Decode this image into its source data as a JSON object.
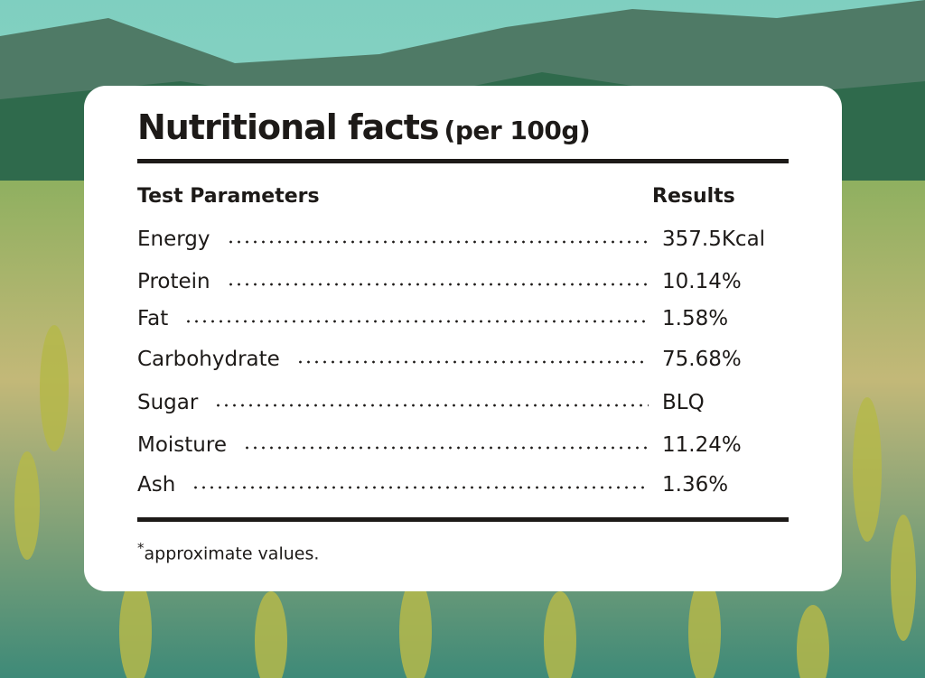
{
  "header": {
    "title": "Nutritional facts",
    "subtitle": "(per 100g)"
  },
  "table": {
    "columns": [
      "Test Parameters",
      "Results"
    ],
    "rows": [
      [
        "Energy",
        "357.5Kcal"
      ],
      [
        "Protein",
        "10.14%"
      ],
      [
        "Fat",
        "1.58%"
      ],
      [
        "Carbohydrate",
        "75.68%"
      ],
      [
        "Sugar",
        "BLQ"
      ],
      [
        "Moisture",
        "11.24%"
      ],
      [
        "Ash",
        "1.36%"
      ]
    ]
  },
  "footnote": {
    "mark": "*",
    "text": "approximate values."
  }
}
